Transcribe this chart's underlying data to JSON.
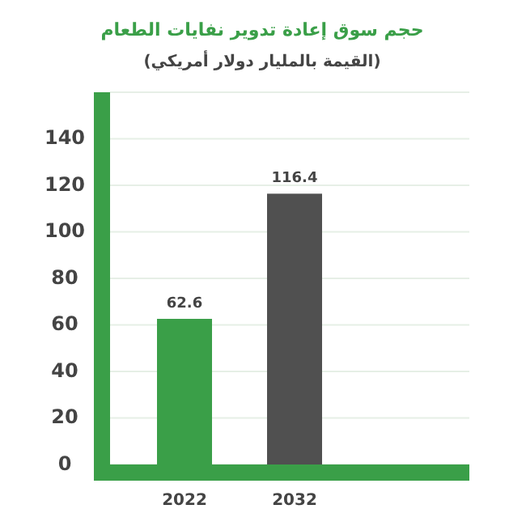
{
  "chart_data": {
    "type": "bar",
    "title": "حجم سوق إعادة تدوير نفايات الطعام",
    "subtitle": "(القيمة بالمليار دولار أمريكي)",
    "categories": [
      "2022",
      "2032"
    ],
    "values": [
      62.6,
      116.4
    ],
    "colors": [
      "#3a9f48",
      "#505050"
    ],
    "ylim": [
      0,
      160
    ],
    "yticks": [
      0,
      20,
      40,
      60,
      80,
      100,
      120,
      140,
      {
        "value": 160,
        "label": null
      }
    ],
    "grid": "y",
    "data_labels": true
  }
}
